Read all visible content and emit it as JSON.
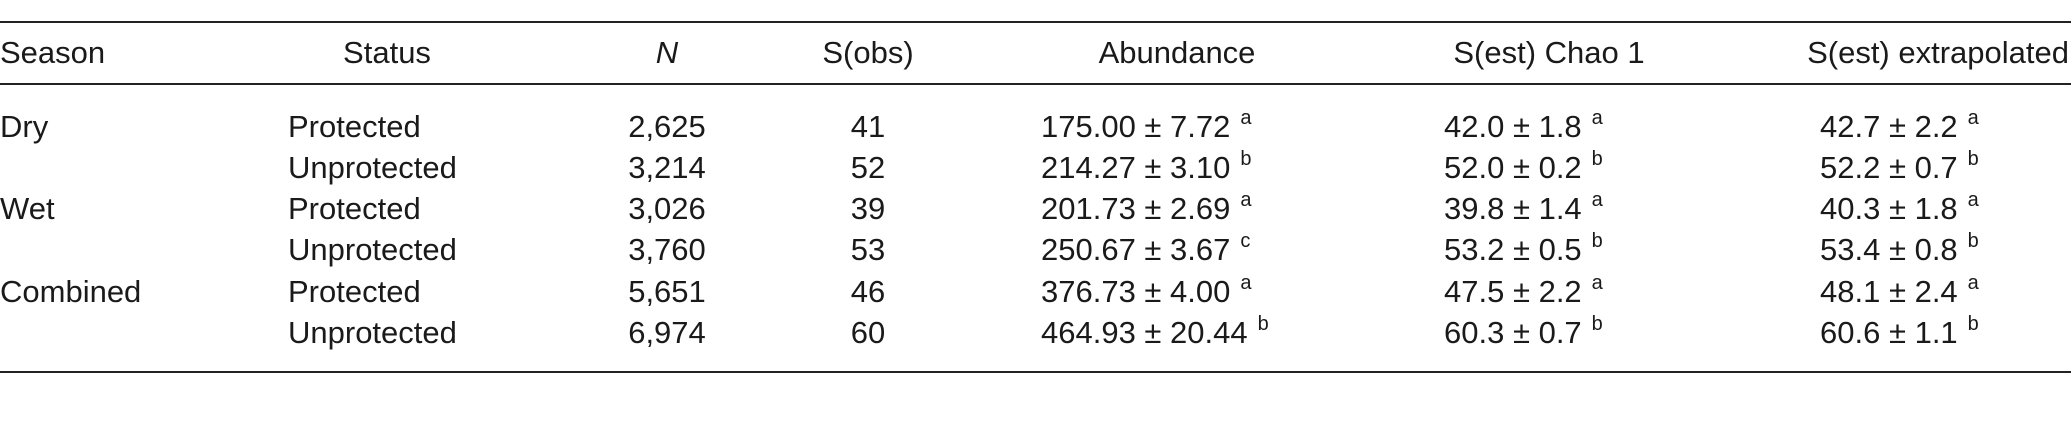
{
  "table": {
    "headers": [
      "Season",
      "Status",
      "N",
      "S(obs)",
      "Abundance",
      "S(est) Chao 1",
      "S(est) extrapolated"
    ],
    "rows": [
      [
        {
          "text": "Dry"
        },
        {
          "text": "Protected"
        },
        {
          "text": "2,625"
        },
        {
          "text": "41"
        },
        {
          "text": "175.00 ± 7.72",
          "sup": "a"
        },
        {
          "text": "42.0 ± 1.8",
          "sup": "a"
        },
        {
          "text": "42.7 ± 2.2",
          "sup": "a"
        }
      ],
      [
        null,
        {
          "text": "Unprotected"
        },
        {
          "text": "3,214"
        },
        {
          "text": "52"
        },
        {
          "text": "214.27 ± 3.10",
          "sup": "b"
        },
        {
          "text": "52.0 ± 0.2",
          "sup": "b"
        },
        {
          "text": "52.2 ± 0.7",
          "sup": "b"
        }
      ],
      [
        {
          "text": "Wet"
        },
        {
          "text": "Protected"
        },
        {
          "text": "3,026"
        },
        {
          "text": "39"
        },
        {
          "text": "201.73 ± 2.69",
          "sup": "a"
        },
        {
          "text": "39.8 ± 1.4",
          "sup": "a"
        },
        {
          "text": "40.3 ± 1.8",
          "sup": "a"
        }
      ],
      [
        null,
        {
          "text": "Unprotected"
        },
        {
          "text": "3,760"
        },
        {
          "text": "53"
        },
        {
          "text": "250.67 ± 3.67",
          "sup": "c"
        },
        {
          "text": "53.2 ± 0.5",
          "sup": "b"
        },
        {
          "text": "53.4 ± 0.8",
          "sup": "b"
        }
      ],
      [
        {
          "text": "Combined"
        },
        {
          "text": "Protected"
        },
        {
          "text": "5,651"
        },
        {
          "text": "46"
        },
        {
          "text": "376.73 ± 4.00",
          "sup": "a"
        },
        {
          "text": "47.5 ± 2.2",
          "sup": "a"
        },
        {
          "text": "48.1 ± 2.4",
          "sup": "a"
        }
      ],
      [
        null,
        {
          "text": "Unprotected"
        },
        {
          "text": "6,974"
        },
        {
          "text": "60"
        },
        {
          "text": "464.93 ± 20.44",
          "sup": "b"
        },
        {
          "text": "60.3 ± 0.7",
          "sup": "b"
        },
        {
          "text": "60.6 ± 1.1",
          "sup": "b"
        }
      ]
    ]
  }
}
